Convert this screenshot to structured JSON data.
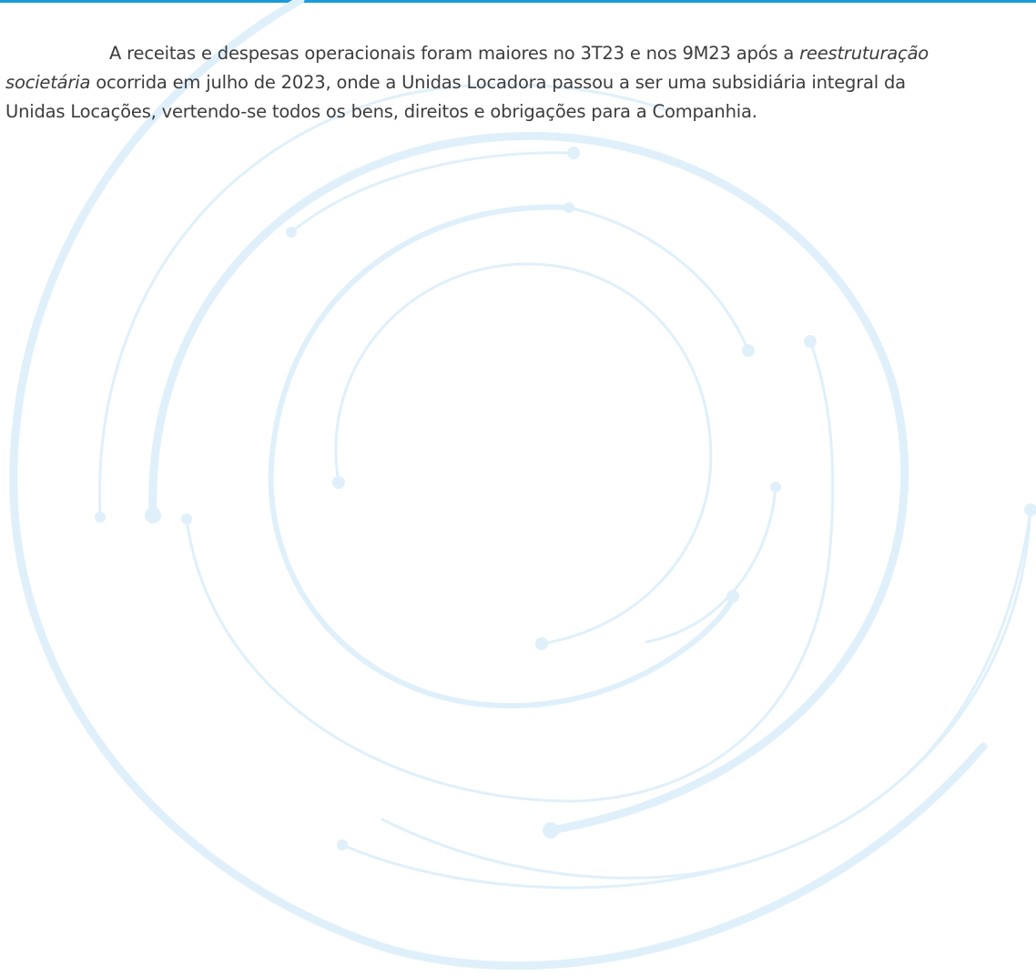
{
  "document": {
    "paragraph": {
      "line1_text": "A receitas e despesas operacionais foram maiores no 3T23 e nos 9M23 após a ",
      "line1_italic": "reestruturação",
      "line2_italic": "societária",
      "line2_text": " ocorrida em julho de 2023, onde a Unidas Locadora passou a ser uma subsidiária integral da",
      "line3_text": "Unidas Locações, vertendo-se todos os bens, direitos e obrigações para a Companhia."
    }
  },
  "colors": {
    "top_rule": "#1a9ad6",
    "watermark": "#dff0fb",
    "text": "#3c3c3c"
  }
}
